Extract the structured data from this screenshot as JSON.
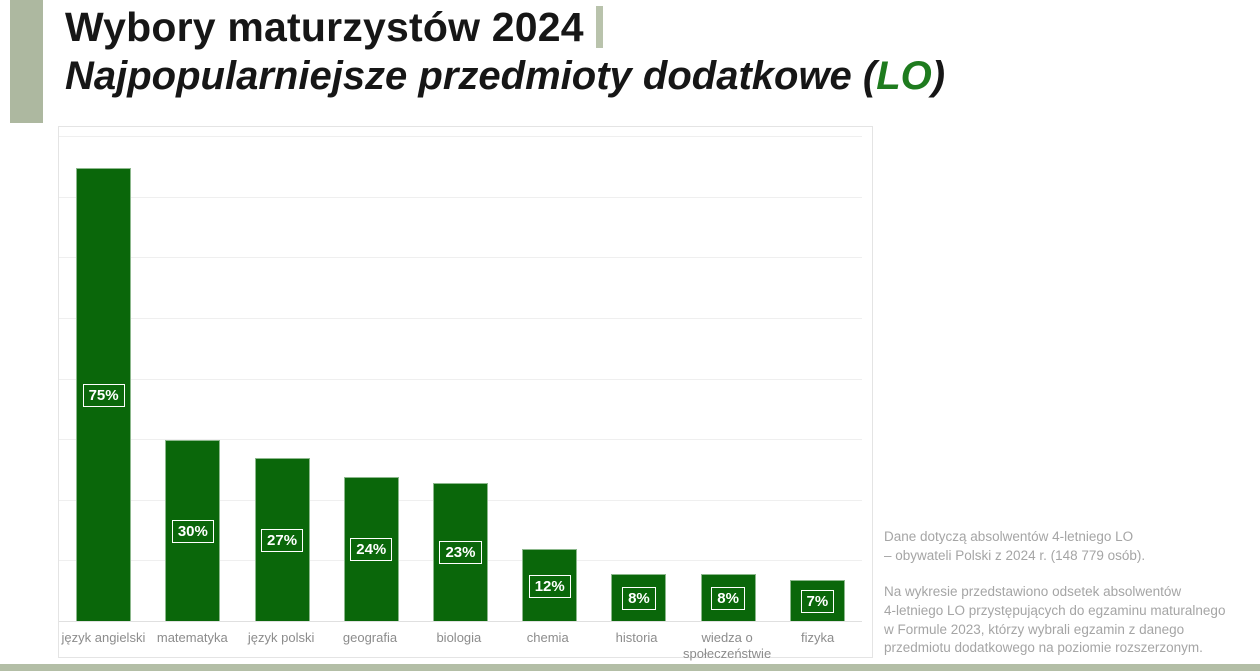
{
  "header": {
    "title_line1": "Wybory maturzystów 2024",
    "title_line2_prefix": "Najpopularniejsze przedmioty dodatkowe (",
    "title_line2_highlight": "LO",
    "title_line2_suffix": ")"
  },
  "chart_data": {
    "type": "bar",
    "title": "Wybory maturzystów 2024 — Najpopularniejsze przedmioty dodatkowe (LO)",
    "categories": [
      "język angielski",
      "matematyka",
      "język polski",
      "geografia",
      "biologia",
      "chemia",
      "historia",
      "wiedza o społeczeństwie",
      "fizyka"
    ],
    "values": [
      75,
      30,
      27,
      24,
      23,
      12,
      8,
      8,
      7
    ],
    "value_labels": [
      "75%",
      "30%",
      "27%",
      "24%",
      "23%",
      "12%",
      "8%",
      "8%",
      "7%"
    ],
    "xlabel": "",
    "ylabel": "",
    "ylim": [
      0,
      81.7
    ],
    "gridline_step": 10,
    "grid": true,
    "legend": "none",
    "bar_color": "#0a670a",
    "value_label_style": "white boxed text centered inside bar"
  },
  "side_note": {
    "para1": "Dane dotyczą absolwentów 4-letniego LO\n– obywateli Polski z 2024 r. (148 779 osób).",
    "para2": "Na wykresie przedstawiono odsetek absolwentów\n4-letniego LO przystępujących do egzaminu maturalnego\nw Formule 2023, którzy wybrali egzamin z danego\nprzedmiotu dodatkowego na poziomie rozszerzonym."
  },
  "colors": {
    "bar_green": "#0a670a",
    "lo_highlight_green": "#1e7b1e",
    "sage_accent": "#adb8a0",
    "title_text": "#161616",
    "axis_label_gray": "#8c8c8c",
    "note_gray": "#a5a5a5"
  }
}
